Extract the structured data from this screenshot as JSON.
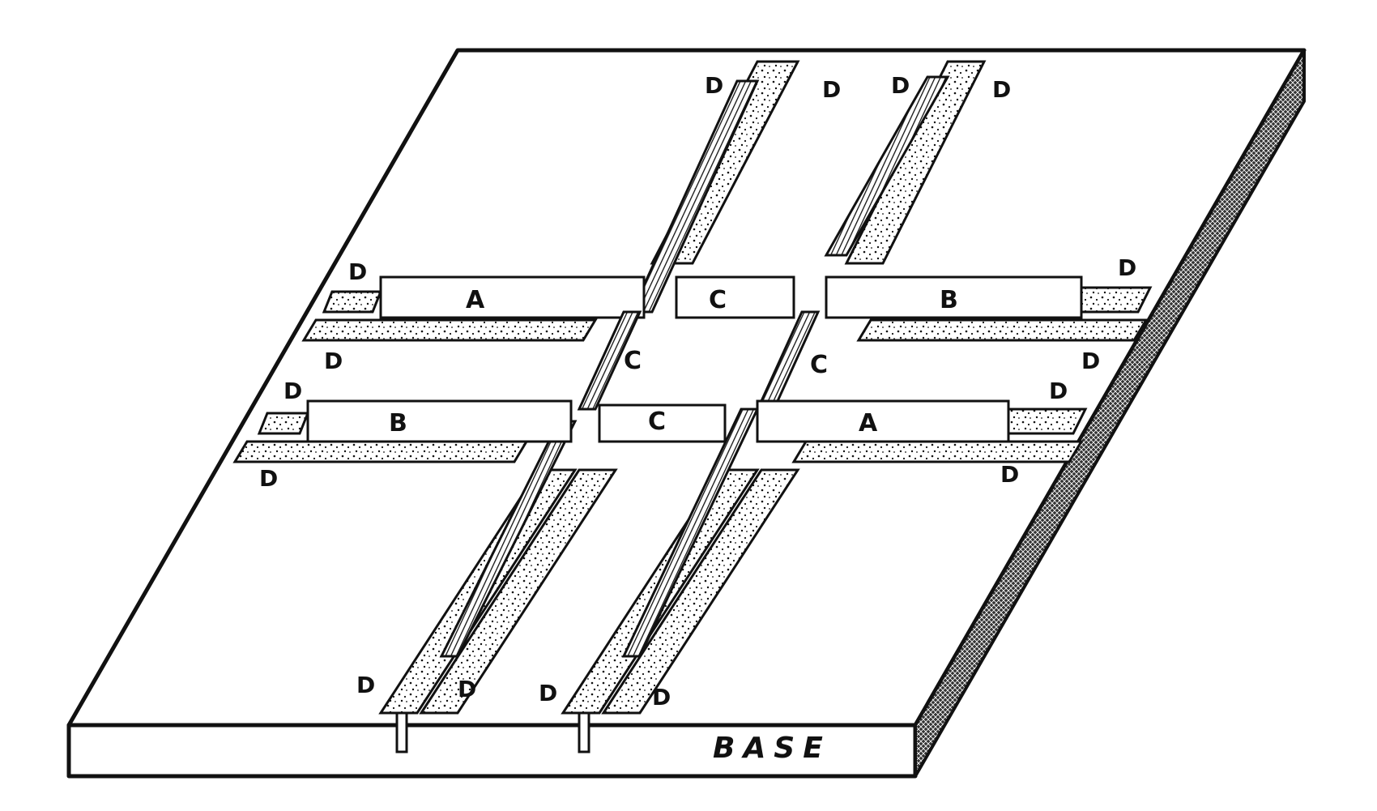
{
  "figure": {
    "base_label": "BASE",
    "labels": {
      "a": "A",
      "b": "B",
      "c": "C",
      "d": "D"
    }
  },
  "colors": {
    "ink": "#111111",
    "paper": "#ffffff"
  }
}
